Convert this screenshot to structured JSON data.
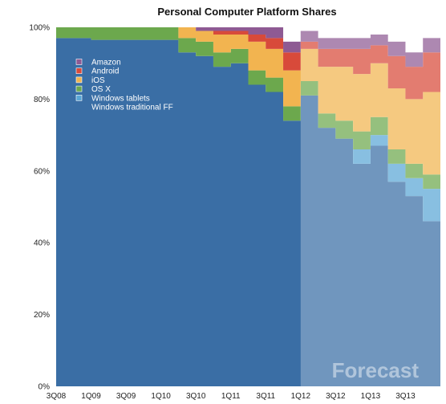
{
  "chart_data": {
    "type": "area",
    "title": "Personal Computer Platform Shares",
    "xlabel": "",
    "ylabel": "",
    "ylim": [
      0,
      100
    ],
    "y_ticks": [
      "0%",
      "20%",
      "40%",
      "60%",
      "80%",
      "100%"
    ],
    "x_tick_labels": [
      "3Q08",
      "1Q09",
      "3Q09",
      "1Q10",
      "3Q10",
      "1Q11",
      "3Q11",
      "1Q12",
      "3Q12",
      "1Q13",
      "3Q13"
    ],
    "periods": [
      "3Q08",
      "4Q08",
      "1Q09",
      "2Q09",
      "3Q09",
      "4Q09",
      "1Q10",
      "2Q10",
      "3Q10",
      "4Q10",
      "1Q11",
      "2Q11",
      "3Q11",
      "4Q11",
      "1Q12",
      "2Q12",
      "3Q12",
      "4Q12",
      "1Q13",
      "2Q13",
      "3Q13",
      "4Q13"
    ],
    "forecast_from": "1Q12",
    "forecast_label": "Forecast",
    "legend_position": "top-left",
    "series": [
      {
        "name": "Windows traditional FF",
        "color": "#3a6ea5",
        "values": [
          97,
          97,
          96.5,
          96.5,
          96.5,
          96.5,
          96.5,
          93,
          92,
          89,
          90,
          84,
          82,
          74,
          81,
          72,
          69,
          62,
          67,
          57,
          53,
          46
        ]
      },
      {
        "name": "Windows tablets",
        "color": "#5aa7d6",
        "values": [
          0,
          0,
          0,
          0,
          0,
          0,
          0,
          0,
          0,
          0,
          0,
          0,
          0,
          0,
          0,
          0,
          0,
          4,
          3,
          5,
          5,
          9
        ]
      },
      {
        "name": "OS X",
        "color": "#6ca84d",
        "values": [
          3,
          3,
          3.5,
          3.5,
          3.5,
          3.5,
          3.5,
          4,
          4,
          4,
          4,
          4,
          4,
          4,
          4,
          4,
          5,
          5,
          5,
          4,
          4,
          4
        ]
      },
      {
        "name": "iOS",
        "color": "#f2b450",
        "values": [
          0,
          0,
          0,
          0,
          0,
          0,
          0,
          3,
          3,
          5,
          4,
          8,
          8,
          10,
          9,
          13,
          15,
          16,
          15,
          17,
          18,
          23
        ]
      },
      {
        "name": "Android",
        "color": "#d84a3a",
        "values": [
          0,
          0,
          0,
          0,
          0,
          0,
          0,
          0,
          0,
          1,
          1,
          2,
          3,
          5,
          2,
          5,
          5,
          7,
          5,
          9,
          9,
          11
        ]
      },
      {
        "name": "Amazon",
        "color": "#8e5a93",
        "values": [
          0,
          0,
          0,
          0,
          0,
          0,
          0,
          0,
          1,
          1,
          1,
          2,
          3,
          3,
          3,
          3,
          3,
          3,
          3,
          4,
          4,
          4
        ]
      }
    ]
  }
}
